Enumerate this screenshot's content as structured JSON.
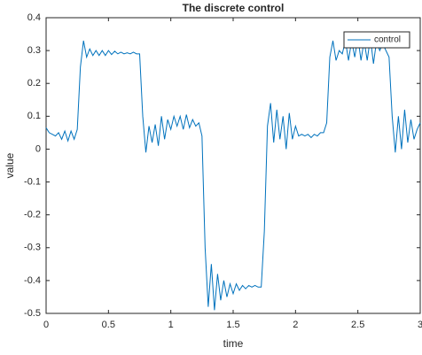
{
  "chart_data": {
    "type": "line",
    "title": "The discrete control",
    "xlabel": "time",
    "ylabel": "value",
    "x": [
      0,
      0.025,
      0.05,
      0.075,
      0.1,
      0.125,
      0.15,
      0.175,
      0.2,
      0.225,
      0.25,
      0.275,
      0.3,
      0.325,
      0.35,
      0.375,
      0.4,
      0.425,
      0.45,
      0.475,
      0.5,
      0.525,
      0.55,
      0.575,
      0.6,
      0.625,
      0.65,
      0.675,
      0.7,
      0.725,
      0.75,
      0.775,
      0.8,
      0.825,
      0.85,
      0.875,
      0.9,
      0.925,
      0.95,
      0.975,
      1.0,
      1.025,
      1.05,
      1.075,
      1.1,
      1.125,
      1.15,
      1.175,
      1.2,
      1.225,
      1.25,
      1.275,
      1.3,
      1.325,
      1.35,
      1.375,
      1.4,
      1.425,
      1.45,
      1.475,
      1.5,
      1.525,
      1.55,
      1.575,
      1.6,
      1.625,
      1.65,
      1.675,
      1.7,
      1.725,
      1.75,
      1.775,
      1.8,
      1.825,
      1.85,
      1.875,
      1.9,
      1.925,
      1.95,
      1.975,
      2.0,
      2.025,
      2.05,
      2.075,
      2.1,
      2.125,
      2.15,
      2.175,
      2.2,
      2.225,
      2.25,
      2.275,
      2.3,
      2.325,
      2.35,
      2.375,
      2.4,
      2.425,
      2.45,
      2.475,
      2.5,
      2.525,
      2.55,
      2.575,
      2.6,
      2.625,
      2.65,
      2.675,
      2.7,
      2.725,
      2.75,
      2.775,
      2.8,
      2.825,
      2.85,
      2.875,
      2.9,
      2.925,
      2.95,
      2.975,
      3.0
    ],
    "series": [
      {
        "name": "control",
        "color": "#0072bd",
        "values": [
          0.065,
          0.05,
          0.045,
          0.04,
          0.05,
          0.03,
          0.055,
          0.025,
          0.055,
          0.03,
          0.06,
          0.25,
          0.33,
          0.28,
          0.305,
          0.285,
          0.3,
          0.285,
          0.3,
          0.285,
          0.3,
          0.288,
          0.298,
          0.29,
          0.295,
          0.29,
          0.293,
          0.29,
          0.295,
          0.29,
          0.29,
          0.1,
          -0.01,
          0.07,
          0.02,
          0.075,
          0.01,
          0.1,
          0.03,
          0.09,
          0.06,
          0.1,
          0.07,
          0.1,
          0.06,
          0.105,
          0.065,
          0.09,
          0.07,
          0.08,
          0.04,
          -0.3,
          -0.48,
          -0.35,
          -0.49,
          -0.38,
          -0.46,
          -0.4,
          -0.45,
          -0.41,
          -0.44,
          -0.41,
          -0.43,
          -0.415,
          -0.425,
          -0.415,
          -0.42,
          -0.415,
          -0.42,
          -0.42,
          -0.25,
          0.07,
          0.14,
          0.02,
          0.12,
          0.03,
          0.1,
          0.0,
          0.11,
          0.03,
          0.07,
          0.04,
          0.045,
          0.04,
          0.045,
          0.035,
          0.045,
          0.04,
          0.05,
          0.05,
          0.08,
          0.28,
          0.33,
          0.27,
          0.3,
          0.29,
          0.33,
          0.27,
          0.33,
          0.28,
          0.34,
          0.27,
          0.33,
          0.27,
          0.34,
          0.26,
          0.33,
          0.3,
          0.32,
          0.3,
          0.28,
          0.1,
          -0.01,
          0.1,
          0.0,
          0.12,
          0.02,
          0.09,
          0.03,
          0.06,
          0.08
        ]
      }
    ],
    "xlim": [
      0,
      3
    ],
    "ylim": [
      -0.5,
      0.4
    ],
    "xticks": [
      0,
      0.5,
      1,
      1.5,
      2,
      2.5,
      3
    ],
    "yticks": [
      -0.5,
      -0.4,
      -0.3,
      -0.2,
      -0.1,
      0,
      0.1,
      0.2,
      0.3,
      0.4
    ],
    "legend": "top-right"
  }
}
